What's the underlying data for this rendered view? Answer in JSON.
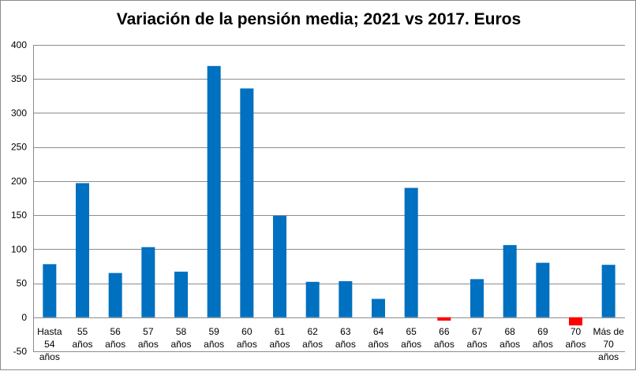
{
  "chart_data": {
    "type": "bar",
    "title": "Variación de la pensión media; 2021 vs 2017. Euros",
    "categories": [
      [
        "Hasta",
        "54",
        "años"
      ],
      [
        "55",
        "años"
      ],
      [
        "56",
        "años"
      ],
      [
        "57",
        "años"
      ],
      [
        "58",
        "años"
      ],
      [
        "59",
        "años"
      ],
      [
        "60",
        "años"
      ],
      [
        "61",
        "años"
      ],
      [
        "62",
        "años"
      ],
      [
        "63",
        "años"
      ],
      [
        "64",
        "años"
      ],
      [
        "65",
        "años"
      ],
      [
        "66",
        "años"
      ],
      [
        "67",
        "años"
      ],
      [
        "68",
        "años"
      ],
      [
        "69",
        "años"
      ],
      [
        "70",
        "años"
      ],
      [
        "Más de",
        "70",
        "años"
      ]
    ],
    "values": [
      78,
      197,
      65,
      103,
      67,
      369,
      336,
      149,
      52,
      53,
      27,
      190,
      -5,
      56,
      106,
      80,
      -12,
      77
    ],
    "ylim": [
      -50,
      400
    ],
    "yticks": [
      -50,
      0,
      50,
      100,
      150,
      200,
      250,
      300,
      350,
      400
    ],
    "grid": true,
    "colors": {
      "positive": "#0070C0",
      "negative": "#FF0000",
      "grid": "#8c8c8c"
    }
  }
}
